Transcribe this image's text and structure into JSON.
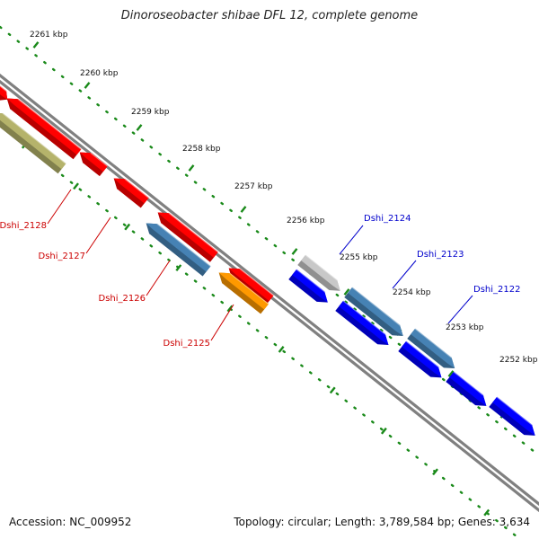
{
  "title": "Dinoroseobacter shibae DFL 12, complete genome",
  "footer": {
    "accession": "Accession: NC_009952",
    "summary": "Topology: circular; Length: 3,789,584 bp; Genes: 3,634"
  },
  "scale_labels": [
    "2261 kbp",
    "2260 kbp",
    "2259 kbp",
    "2258 kbp",
    "2257 kbp",
    "2256 kbp",
    "2255 kbp",
    "2254 kbp",
    "2253 kbp",
    "2252 kbp"
  ],
  "gene_labels": {
    "reverse": [
      "Dshi_2128",
      "Dshi_2127",
      "Dshi_2126",
      "Dshi_2125"
    ],
    "forward": [
      "Dshi_2124",
      "Dshi_2123",
      "Dshi_2122"
    ]
  },
  "colors": {
    "red": "#ff0000",
    "blue": "#0000ff",
    "steel": "#4682b4",
    "olive": "#b5b36b",
    "orange": "#ff9900",
    "gray": "#c8c8c8",
    "scale": "#1a8a1a",
    "backbone": "#808080",
    "label_red": "#cc0000",
    "label_blue": "#0000cc"
  }
}
